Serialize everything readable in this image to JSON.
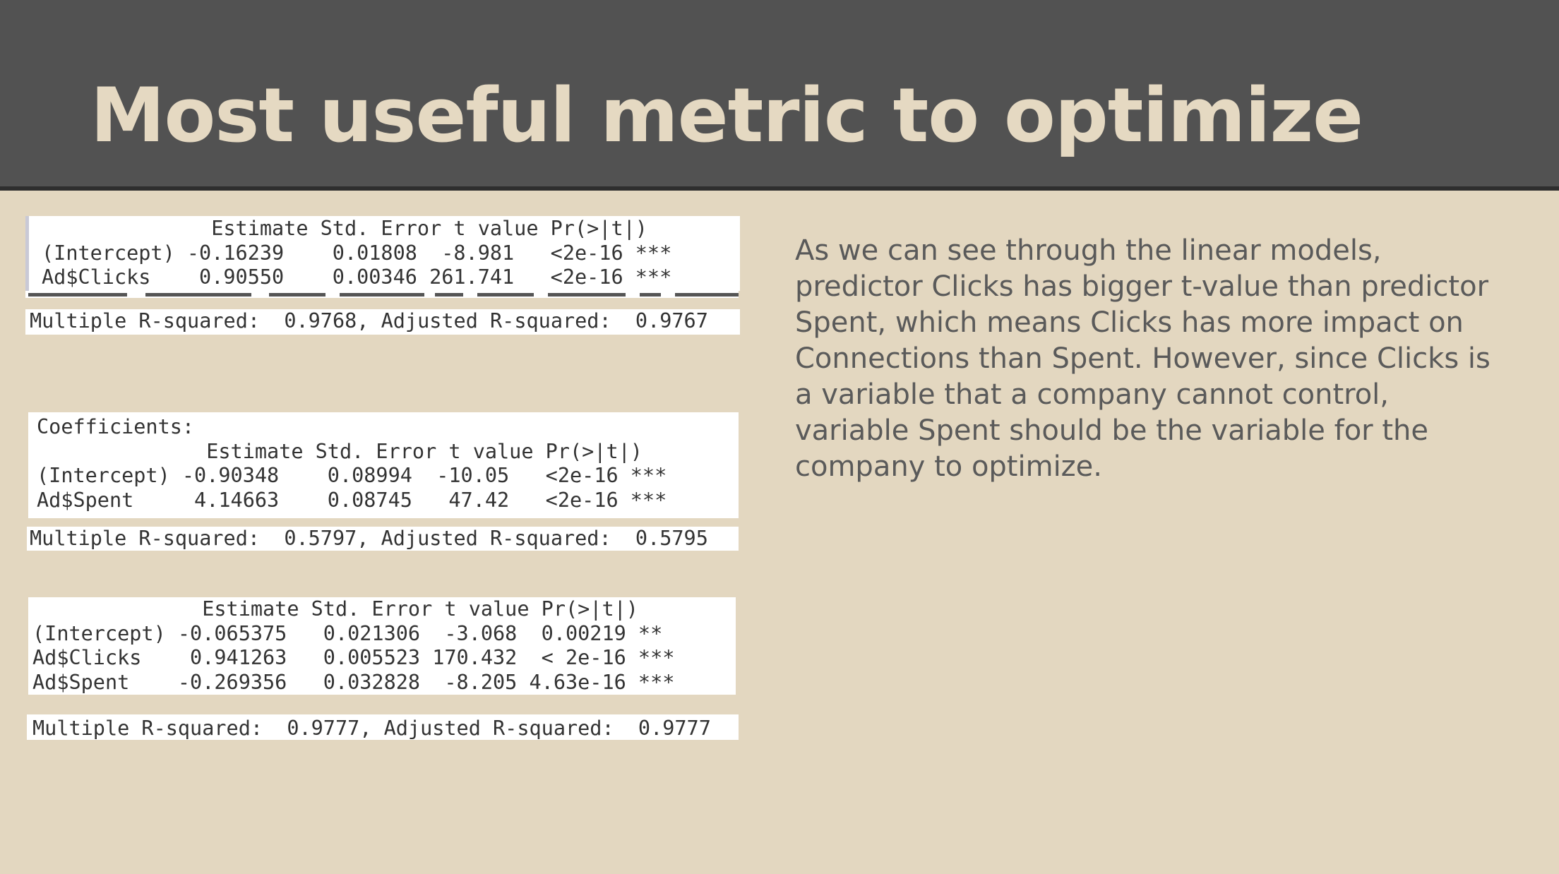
{
  "title": "Most useful metric to optimize",
  "regression_outputs": {
    "clicks_model": {
      "header": "              Estimate Std. Error t value Pr(>|t|)",
      "rows": [
        "(Intercept) -0.16239    0.01808  -8.981   <2e-16 ***",
        "Ad$Clicks    0.90550    0.00346 261.741   <2e-16 ***"
      ],
      "r_squared": "Multiple R-squared:  0.9768, Adjusted R-squared:  0.9767"
    },
    "spent_model": {
      "label": "Coefficients:",
      "header": "              Estimate Std. Error t value Pr(>|t|)",
      "rows": [
        "(Intercept) -0.90348    0.08994  -10.05   <2e-16 ***",
        "Ad$Spent     4.14663    0.08745   47.42   <2e-16 ***"
      ],
      "r_squared": "Multiple R-squared:  0.5797, Adjusted R-squared:  0.5795"
    },
    "combined_model": {
      "header": "              Estimate Std. Error t value Pr(>|t|)",
      "rows": [
        "(Intercept) -0.065375   0.021306  -3.068  0.00219 **",
        "Ad$Clicks    0.941263   0.005523 170.432  < 2e-16 ***",
        "Ad$Spent    -0.269356   0.032828  -8.205 4.63e-16 ***"
      ],
      "r_squared": "Multiple R-squared:  0.9777, Adjusted R-squared:  0.9777"
    }
  },
  "explanation": "As we can see through the linear models, predictor Clicks has bigger t-value than predictor Spent, which means Clicks has more impact on Connections than Spent. However, since Clicks is a variable that a company cannot control, variable Spent should be the variable for the company to optimize.",
  "colors": {
    "header_bg": "#525252",
    "title_text": "#e5d9c2",
    "slide_bg": "#e3d7c0",
    "body_text": "#5a5a5a"
  }
}
